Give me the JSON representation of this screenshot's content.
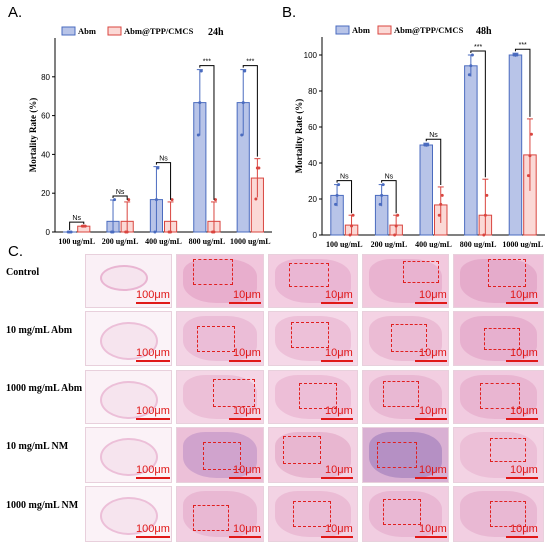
{
  "panels": {
    "a": "A.",
    "b": "B.",
    "c": "C."
  },
  "chart_data": [
    {
      "type": "bar",
      "title": "24h",
      "ylabel": "Mortality Rate (%)",
      "ylim": [
        0,
        100
      ],
      "yticks": [
        0,
        20,
        40,
        60,
        80
      ],
      "categories": [
        "100 ug/mL",
        "200 ug/mL",
        "400 ug/mL",
        "800 ug/mL",
        "1000  ug/mL"
      ],
      "series": [
        {
          "name": "Abm",
          "color": "#b8c4e8",
          "edge": "#4a6bbf",
          "values": [
            0,
            5.5,
            16.7,
            66.7,
            66.7
          ],
          "errors": [
            0,
            11,
            17,
            17,
            17
          ],
          "points": [
            [
              0,
              0,
              0
            ],
            [
              0,
              0,
              16.7
            ],
            [
              0,
              16.7,
              33
            ],
            [
              50,
              66.7,
              83
            ],
            [
              50,
              66.7,
              83
            ]
          ]
        },
        {
          "name": "Abm@TPP/CMCS",
          "color": "#fbd9d6",
          "edge": "#d9453f",
          "values": [
            3,
            5.5,
            5.5,
            5.5,
            27.8
          ],
          "errors": [
            0,
            10,
            10,
            10,
            10
          ],
          "points": [
            [
              3,
              3,
              3
            ],
            [
              0,
              0,
              16.7
            ],
            [
              0,
              0,
              16.7
            ],
            [
              0,
              0,
              16.7
            ],
            [
              17,
              33,
              33
            ]
          ]
        }
      ],
      "significance": [
        "Ns",
        "Ns",
        "Ns",
        "***",
        "***"
      ]
    },
    {
      "type": "bar",
      "title": "48h",
      "ylabel": "Mortality Rate (%)",
      "ylim": [
        0,
        110
      ],
      "yticks": [
        0,
        20,
        40,
        60,
        80,
        100
      ],
      "categories": [
        "100 ug/mL",
        "200 ug/mL",
        "400 ug/mL",
        "800 ug/mL",
        "1000 ug/mL"
      ],
      "series": [
        {
          "name": "Abm",
          "color": "#b8c4e8",
          "edge": "#4a6bbf",
          "values": [
            22,
            22,
            50,
            94,
            100
          ],
          "errors": [
            6,
            6,
            1,
            6,
            1
          ],
          "points": [
            [
              17,
              22,
              28
            ],
            [
              17,
              22,
              28
            ],
            [
              50,
              50,
              50
            ],
            [
              89,
              94,
              100
            ],
            [
              100,
              100,
              100
            ]
          ]
        },
        {
          "name": "Abm@TPP/CMCS",
          "color": "#fbd9d6",
          "edge": "#d9453f",
          "values": [
            5.5,
            5.5,
            16.7,
            11,
            44.5
          ],
          "errors": [
            5.5,
            5.5,
            10,
            20,
            20
          ],
          "points": [
            [
              0,
              5,
              11
            ],
            [
              0,
              5,
              11
            ],
            [
              11,
              17,
              22
            ],
            [
              0,
              11,
              22
            ],
            [
              33,
              44,
              56
            ]
          ]
        }
      ],
      "significance": [
        "Ns",
        "Ns",
        "Ns",
        "***",
        "***"
      ]
    }
  ],
  "histology": {
    "rows": [
      {
        "label": "Control",
        "scale_labels": [
          "100μm",
          "10μm",
          "10μm",
          "10μm",
          "10μm"
        ]
      },
      {
        "label": "10 mg/mL Abm",
        "scale_labels": [
          "100μm",
          "10μm",
          "10μm",
          "10μm",
          "10μm"
        ]
      },
      {
        "label": "1000 mg/mL Abm",
        "scale_labels": [
          "100μm",
          "10μm",
          "10μm",
          "10μm",
          "10μm"
        ]
      },
      {
        "label": "10 mg/mL NM",
        "scale_labels": [
          "100μm",
          "10μm",
          "10μm",
          "10μm",
          "10μm"
        ]
      },
      {
        "label": "1000 mg/mL NM",
        "scale_labels": [
          "100μm",
          "10μm",
          "10μm",
          "10μm",
          "10μm"
        ]
      }
    ]
  }
}
